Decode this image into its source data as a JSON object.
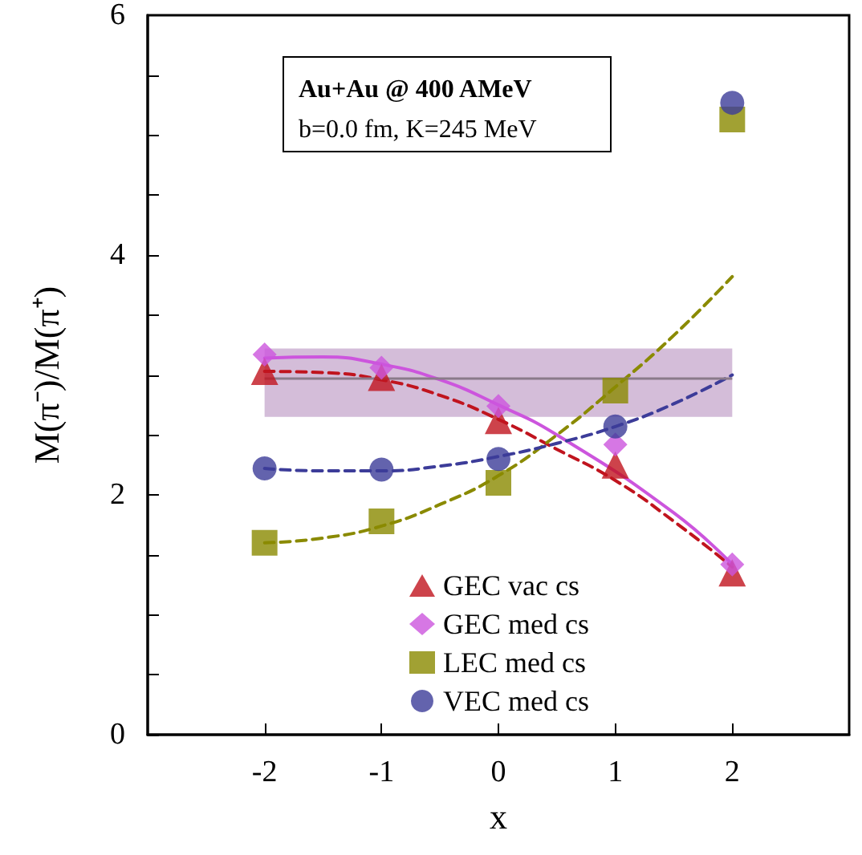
{
  "chart_data": {
    "type": "scatter",
    "xlabel": "x",
    "ylabel": "M(π⁻)/M(π⁺)",
    "annotations": [
      "Au+Au @ 400 AMeV",
      "b=0.0 fm, K=245 MeV"
    ],
    "xlim": [
      -3,
      3
    ],
    "xticks": [
      -2,
      -1,
      0,
      1,
      2
    ],
    "ylim": [
      0,
      6
    ],
    "yticks": [
      0,
      {
        "value": 0.5,
        "label": null
      },
      {
        "value": 1,
        "label": null
      },
      {
        "value": 1.5,
        "label": null
      },
      2,
      {
        "value": 2.5,
        "label": null
      },
      {
        "value": 3,
        "label": null
      },
      {
        "value": 3.5,
        "label": null
      },
      4,
      {
        "value": 4.5,
        "label": null
      },
      {
        "value": 5,
        "label": null
      },
      {
        "value": 5.5,
        "label": null
      },
      6
    ],
    "x": [
      -2,
      -1,
      0,
      1,
      2
    ],
    "legend": "bottom",
    "series": [
      {
        "name": "GEC vac cs",
        "color": "#c0141e",
        "marker": "triangle",
        "values": [
          3.03,
          2.98,
          2.62,
          2.25,
          1.35
        ]
      },
      {
        "name": "GEC med cs",
        "color": "#cc55dd",
        "marker": "diamond",
        "values": [
          3.17,
          3.06,
          2.74,
          2.42,
          1.42
        ]
      },
      {
        "name": "LEC med cs",
        "color": "#8a8a00",
        "marker": "square",
        "values": [
          1.6,
          1.78,
          2.1,
          2.87,
          5.13
        ]
      },
      {
        "name": "VEC med cs",
        "color": "#3c3c99",
        "marker": "circle",
        "values": [
          2.22,
          2.21,
          2.3,
          2.57,
          5.27
        ]
      },
      {
        "type": "line",
        "color": "#c0141e",
        "marker": "none",
        "line_style": "dashed",
        "x": [
          -2,
          -1.5,
          -1,
          -0.5,
          0,
          0.5,
          1,
          1.5,
          2
        ],
        "values": [
          3.03,
          3.02,
          2.96,
          2.83,
          2.63,
          2.38,
          2.12,
          1.78,
          1.4
        ]
      },
      {
        "type": "line",
        "color": "#cc55dd",
        "marker": "none",
        "line_style": "solid",
        "x": [
          -2,
          -1.5,
          -1,
          -0.5,
          0,
          0.5,
          1.5,
          2
        ],
        "values": [
          3.14,
          3.15,
          3.09,
          2.96,
          2.75,
          2.5,
          1.85,
          1.42
        ]
      },
      {
        "type": "line",
        "color": "#8a8a00",
        "marker": "none",
        "line_style": "dashed",
        "x": [
          -2,
          -1.5,
          -1,
          -0.5,
          0,
          0.5,
          1,
          1.5,
          2
        ],
        "values": [
          1.6,
          1.64,
          1.74,
          1.92,
          2.16,
          2.5,
          2.9,
          3.33,
          3.82
        ]
      },
      {
        "type": "line",
        "color": "#3c3c99",
        "marker": "none",
        "line_style": "dashed",
        "x": [
          -2,
          -1.5,
          -1,
          -0.5,
          0,
          0.5,
          1,
          1.5,
          2
        ],
        "values": [
          2.22,
          2.2,
          2.2,
          2.24,
          2.32,
          2.43,
          2.57,
          2.76,
          3.0
        ]
      }
    ],
    "ref_lines": [
      {
        "axis": "y",
        "value": 2.97,
        "color": "#8a7a8a"
      }
    ],
    "bands": [
      {
        "axis": "y",
        "from": 2.65,
        "to": 3.22,
        "color": "#c9adcf"
      }
    ]
  }
}
